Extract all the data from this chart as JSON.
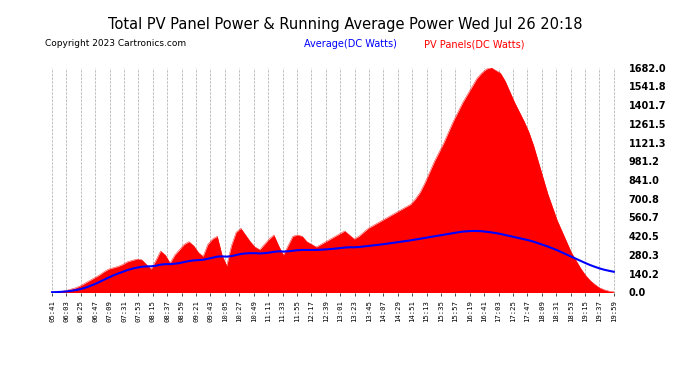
{
  "title": "Total PV Panel Power & Running Average Power Wed Jul 26 20:18",
  "copyright": "Copyright 2023 Cartronics.com",
  "legend_avg": "Average(DC Watts)",
  "legend_pv": "PV Panels(DC Watts)",
  "ylabel_right_values": [
    1682.0,
    1541.8,
    1401.7,
    1261.5,
    1121.3,
    981.2,
    841.0,
    700.8,
    560.7,
    420.5,
    280.3,
    140.2,
    0.0
  ],
  "ymax": 1682.0,
  "ymin": 0.0,
  "bg_color": "#ffffff",
  "plot_bg_color": "#ffffff",
  "grid_color": "#aaaaaa",
  "bar_color": "#ff0000",
  "avg_line_color": "#0000ff",
  "title_color": "#000000",
  "tick_label_color": "#000000",
  "x_tick_labels": [
    "05:41",
    "06:03",
    "06:25",
    "06:47",
    "07:09",
    "07:31",
    "07:53",
    "08:15",
    "08:37",
    "08:59",
    "09:21",
    "09:43",
    "10:05",
    "10:27",
    "10:49",
    "11:11",
    "11:33",
    "11:55",
    "12:17",
    "12:39",
    "13:01",
    "13:23",
    "13:45",
    "14:07",
    "14:29",
    "14:51",
    "15:13",
    "15:35",
    "15:57",
    "16:19",
    "16:41",
    "17:03",
    "17:25",
    "17:47",
    "18:09",
    "18:31",
    "18:53",
    "19:15",
    "19:37",
    "19:59"
  ],
  "pv_values": [
    2,
    5,
    8,
    15,
    25,
    35,
    50,
    70,
    90,
    110,
    130,
    155,
    175,
    185,
    195,
    210,
    230,
    240,
    250,
    245,
    210,
    175,
    240,
    310,
    280,
    220,
    280,
    320,
    360,
    380,
    350,
    300,
    270,
    360,
    400,
    420,
    280,
    200,
    350,
    450,
    480,
    430,
    380,
    340,
    320,
    360,
    400,
    430,
    350,
    280,
    350,
    420,
    430,
    420,
    380,
    360,
    340,
    360,
    380,
    400,
    420,
    440,
    460,
    430,
    400,
    420,
    450,
    480,
    500,
    520,
    540,
    560,
    580,
    600,
    620,
    640,
    660,
    700,
    750,
    820,
    900,
    980,
    1050,
    1120,
    1200,
    1280,
    1350,
    1420,
    1480,
    1540,
    1600,
    1640,
    1670,
    1682,
    1660,
    1640,
    1580,
    1500,
    1420,
    1350,
    1280,
    1200,
    1100,
    980,
    860,
    740,
    640,
    540,
    460,
    380,
    300,
    240,
    180,
    130,
    90,
    60,
    35,
    20,
    10,
    5
  ],
  "avg_values": [
    2,
    3,
    5,
    8,
    12,
    18,
    25,
    35,
    48,
    62,
    78,
    95,
    112,
    128,
    142,
    155,
    168,
    178,
    186,
    192,
    195,
    196,
    200,
    208,
    212,
    212,
    215,
    220,
    228,
    235,
    240,
    242,
    245,
    252,
    260,
    268,
    270,
    268,
    272,
    280,
    288,
    292,
    294,
    294,
    292,
    294,
    298,
    304,
    308,
    306,
    308,
    312,
    316,
    318,
    318,
    318,
    318,
    320,
    322,
    325,
    328,
    332,
    336,
    338,
    338,
    340,
    344,
    348,
    352,
    356,
    360,
    365,
    370,
    375,
    380,
    385,
    390,
    396,
    402,
    408,
    414,
    420,
    426,
    432,
    438,
    444,
    450,
    455,
    458,
    460,
    460,
    458,
    454,
    450,
    444,
    438,
    430,
    422,
    414,
    406,
    398,
    390,
    380,
    368,
    356,
    344,
    330,
    316,
    300,
    284,
    268,
    252,
    236,
    220,
    205,
    192,
    180,
    170,
    162,
    155
  ]
}
